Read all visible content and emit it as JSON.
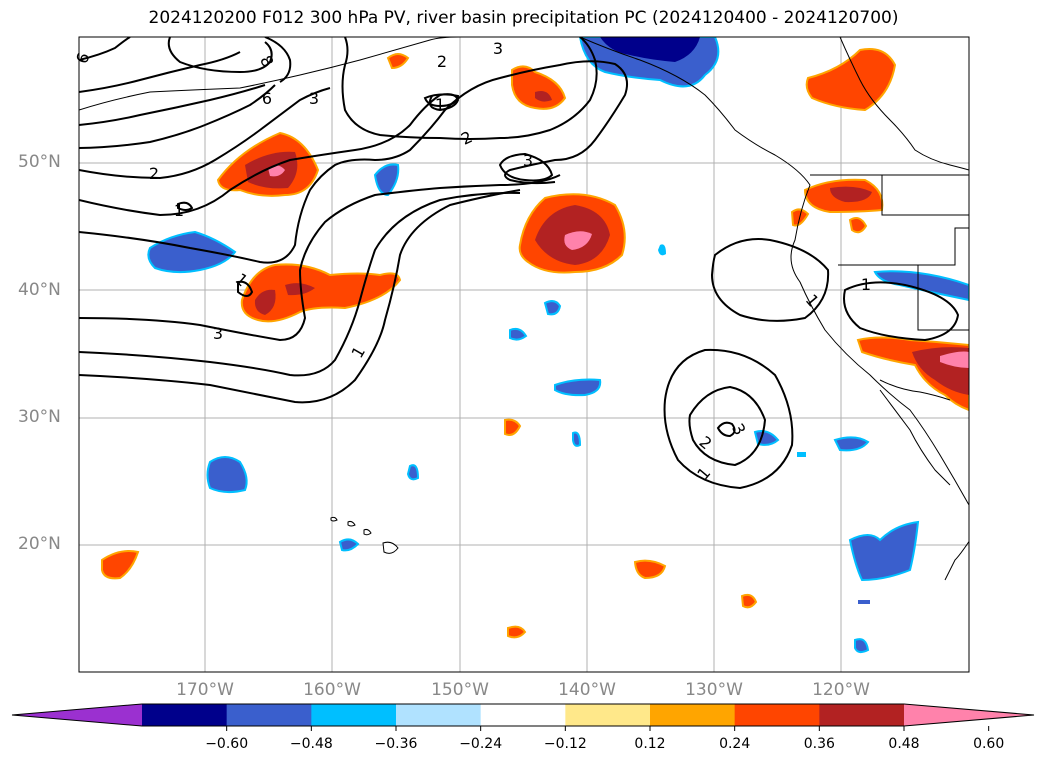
{
  "title": "2024120200 F012 300 hPa PV, river basin precipitation PC (2024120400 - 2024120700)",
  "lat_labels": [
    "50°N",
    "40°N",
    "30°N",
    "20°N"
  ],
  "lon_labels": [
    "170°W",
    "160°W",
    "150°W",
    "140°W",
    "130°W",
    "120°W"
  ],
  "contour_labels": [
    "6",
    "8",
    "6",
    "3",
    "3",
    "2",
    "1",
    "2",
    "3",
    "2",
    "1",
    "1",
    "3",
    "1",
    "1",
    "1",
    "2",
    "3",
    "1"
  ],
  "colorbar": {
    "ticks": [
      "−0.60",
      "−0.48",
      "−0.36",
      "−0.24",
      "−0.12",
      "0.12",
      "0.24",
      "0.36",
      "0.48",
      "0.60"
    ],
    "colors": [
      "#9b30d0",
      "#00008b",
      "#3a5fcd",
      "#00bfff",
      "#b0e2ff",
      "#ffffff",
      "#ffe88a",
      "#ffa500",
      "#ff4500",
      "#b22222",
      "#ff82ab"
    ]
  }
}
